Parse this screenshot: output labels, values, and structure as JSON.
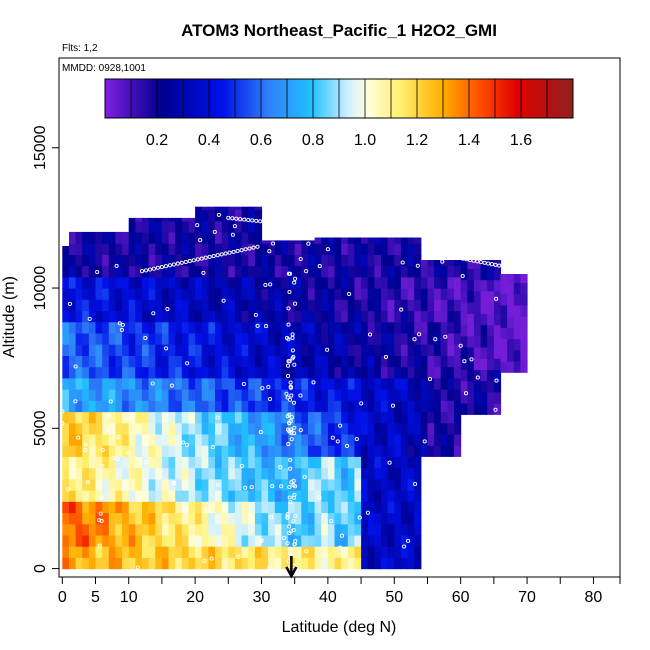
{
  "chart_data": {
    "type": "heatmap",
    "title": "ATOM3 Northeast_Pacific_1 H2O2_GMI",
    "annotations": {
      "flights": "Flts: 1,2",
      "dates": "MMDD: 0928,1001"
    },
    "xlabel": "Latitude (deg N)",
    "ylabel": "Altitude (m)",
    "xlim": [
      -0.5,
      84
    ],
    "ylim": [
      -300,
      18200
    ],
    "x_major_ticks": [
      0,
      5,
      10,
      20,
      30,
      40,
      50,
      60,
      70,
      80
    ],
    "x_minor_ticks": [
      15,
      25,
      35,
      45,
      55,
      65,
      75,
      85
    ],
    "y_ticks": [
      0,
      5000,
      10000,
      15000
    ],
    "colorbar": {
      "range": [
        0,
        1.8
      ],
      "ticks": [
        "0.2",
        "0.4",
        "0.6",
        "0.8",
        "1.0",
        "1.2",
        "1.4",
        "1.6"
      ],
      "tick_values": [
        0.2,
        0.4,
        0.6,
        0.8,
        1.0,
        1.2,
        1.4,
        1.6
      ]
    },
    "marker": {
      "type": "arrow-down",
      "latitude": 34.5
    },
    "grid": false,
    "legend": "colorbar-top-inside"
  }
}
